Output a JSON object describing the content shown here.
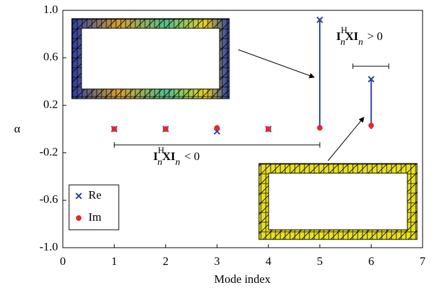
{
  "chart_data": {
    "type": "stem-scatter",
    "x_label": "Mode index",
    "y_label": "α",
    "x": [
      1,
      2,
      3,
      4,
      5,
      6
    ],
    "series": [
      {
        "name": "Re",
        "color": "#2b3f9e",
        "values": [
          0,
          0,
          -0.02,
          0,
          0.92,
          0.42
        ]
      },
      {
        "name": "Im",
        "color": "#e8262c",
        "values": [
          0,
          0,
          0.01,
          0,
          0.01,
          0.03
        ]
      }
    ],
    "xlim": [
      0,
      7
    ],
    "xticks": [
      0,
      1,
      2,
      3,
      4,
      5,
      6,
      7
    ],
    "ylim": [
      -1,
      1
    ],
    "yticks": [
      {
        "value": -1,
        "label": "-1.0"
      },
      -0.6,
      -0.2,
      0.2,
      0.6,
      {
        "value": 1,
        "label": "1.0"
      }
    ],
    "legend": "lower left",
    "annotations": [
      {
        "base1": "I",
        "sup": "H",
        "sub1": "n",
        "base2": "XI",
        "sub2": "n",
        "rel": "< 0"
      },
      {
        "base1": "I",
        "sup": "H",
        "sub1": "n",
        "base2": "XI",
        "sub2": "n",
        "rel": "> 0"
      }
    ]
  }
}
